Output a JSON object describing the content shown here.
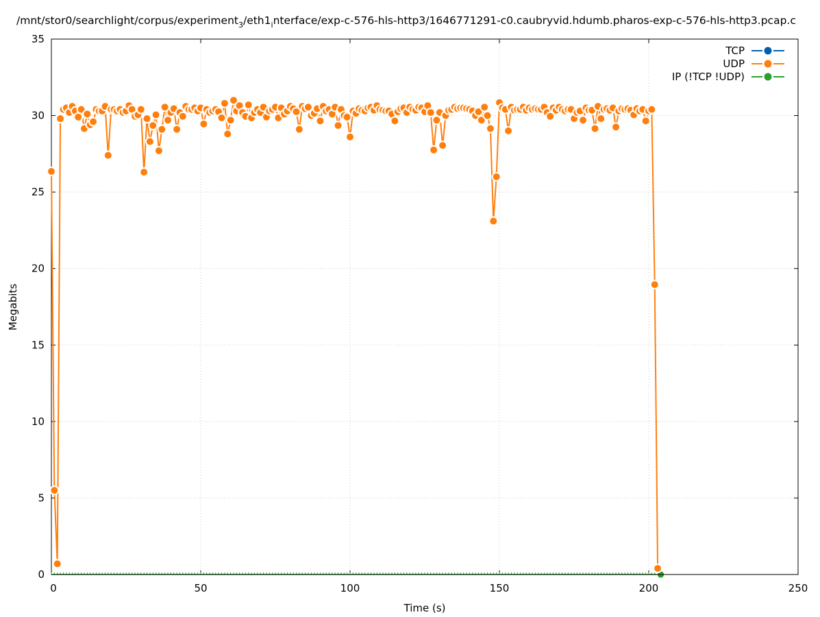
{
  "chart_data": {
    "type": "line",
    "title_parts": [
      {
        "text": "/mnt/stor0/searchlight/corpus/experiment",
        "sub": false
      },
      {
        "text": "3",
        "sub": true
      },
      {
        "text": "/eth1",
        "sub": false
      },
      {
        "text": "i",
        "sub": true
      },
      {
        "text": "nterface/exp-c-576-hls-http3/1646771291-c0.caubryvid.hdumb.pharos-exp-c-576-hls-http3.pcap.c",
        "sub": false
      }
    ],
    "xlabel": "Time (s)",
    "ylabel": "Megabits",
    "xlim": [
      0,
      250
    ],
    "ylim": [
      0,
      35
    ],
    "xticks": [
      "0",
      "50",
      "100",
      "150",
      "200",
      "250"
    ],
    "yticks": [
      "0",
      "5",
      "10",
      "15",
      "20",
      "25",
      "30",
      "35"
    ],
    "grid": true,
    "legend_position": "top-right",
    "series": [
      {
        "name": "TCP",
        "color": "#0060ad",
        "x_start": 0,
        "values": []
      },
      {
        "name": "UDP",
        "color": "#ff7f0e",
        "x_start": 0,
        "values": [
          26.35,
          5.5,
          0.7,
          29.8,
          30.4,
          30.5,
          30.2,
          30.6,
          30.3,
          29.9,
          30.4,
          29.15,
          30.1,
          29.4,
          29.6,
          30.4,
          30.3,
          30.3,
          30.6,
          27.4,
          30.4,
          30.4,
          30.3,
          30.4,
          30.2,
          30.3,
          30.65,
          30.4,
          29.95,
          30.05,
          30.4,
          26.3,
          29.8,
          28.3,
          29.35,
          30.05,
          27.7,
          29.1,
          30.55,
          29.7,
          30.2,
          30.45,
          29.1,
          30.2,
          29.95,
          30.6,
          30.4,
          30.4,
          30.5,
          30.3,
          30.5,
          29.45,
          30.4,
          30.2,
          30.3,
          30.4,
          30.25,
          29.85,
          30.8,
          28.8,
          29.7,
          31.0,
          30.3,
          30.65,
          30.2,
          29.95,
          30.7,
          29.85,
          30.2,
          30.4,
          30.2,
          30.55,
          29.9,
          30.3,
          30.4,
          30.55,
          29.85,
          30.5,
          30.1,
          30.3,
          30.6,
          30.45,
          30.25,
          29.1,
          30.6,
          30.45,
          30.55,
          30.0,
          30.15,
          30.45,
          29.65,
          30.6,
          30.3,
          30.4,
          30.1,
          30.55,
          29.35,
          30.4,
          30.0,
          29.9,
          28.6,
          30.3,
          30.15,
          30.45,
          30.35,
          30.3,
          30.5,
          30.55,
          30.35,
          30.65,
          30.4,
          30.35,
          30.3,
          30.3,
          30.1,
          29.65,
          30.25,
          30.45,
          30.5,
          30.2,
          30.55,
          30.4,
          30.35,
          30.55,
          30.5,
          30.25,
          30.65,
          30.2,
          27.75,
          29.7,
          30.2,
          28.05,
          30.0,
          30.35,
          30.4,
          30.55,
          30.45,
          30.5,
          30.5,
          30.45,
          30.4,
          30.3,
          30.0,
          30.25,
          29.7,
          30.55,
          30.0,
          29.15,
          23.1,
          26.0,
          30.85,
          30.5,
          30.4,
          29.0,
          30.55,
          30.35,
          30.4,
          30.4,
          30.55,
          30.35,
          30.5,
          30.4,
          30.45,
          30.4,
          30.4,
          30.55,
          30.2,
          29.95,
          30.5,
          30.35,
          30.55,
          30.4,
          30.3,
          30.4,
          30.4,
          29.8,
          30.2,
          30.3,
          29.7,
          30.5,
          30.35,
          30.35,
          29.15,
          30.6,
          29.8,
          30.4,
          30.45,
          30.35,
          30.5,
          29.25,
          30.3,
          30.45,
          30.4,
          30.45,
          30.35,
          30.05,
          30.45,
          30.3,
          30.4,
          29.65,
          30.3,
          30.4,
          18.95,
          0.4
        ]
      },
      {
        "name": "IP (!TCP  !UDP)",
        "color": "#2ca02c",
        "x_start": 0,
        "values": [
          0,
          0,
          0,
          0,
          0,
          0,
          0,
          0,
          0,
          0,
          0,
          0,
          0,
          0,
          0,
          0,
          0,
          0,
          0,
          0,
          0,
          0,
          0,
          0,
          0,
          0,
          0,
          0,
          0,
          0,
          0,
          0,
          0,
          0,
          0,
          0,
          0,
          0,
          0,
          0,
          0,
          0,
          0,
          0,
          0,
          0,
          0,
          0,
          0,
          0,
          0,
          0,
          0,
          0,
          0,
          0,
          0,
          0,
          0,
          0,
          0,
          0,
          0,
          0,
          0,
          0,
          0,
          0,
          0,
          0,
          0,
          0,
          0,
          0,
          0,
          0,
          0,
          0,
          0,
          0,
          0,
          0,
          0,
          0,
          0,
          0,
          0,
          0,
          0,
          0,
          0,
          0,
          0,
          0,
          0,
          0,
          0,
          0,
          0,
          0,
          0,
          0,
          0,
          0,
          0,
          0,
          0,
          0,
          0,
          0,
          0,
          0,
          0,
          0,
          0,
          0,
          0,
          0,
          0,
          0,
          0,
          0,
          0,
          0,
          0,
          0,
          0,
          0,
          0,
          0,
          0,
          0,
          0,
          0,
          0,
          0,
          0,
          0,
          0,
          0,
          0,
          0,
          0,
          0,
          0,
          0,
          0,
          0,
          0,
          0,
          0,
          0,
          0,
          0,
          0,
          0,
          0,
          0,
          0,
          0,
          0,
          0,
          0,
          0,
          0,
          0,
          0,
          0,
          0,
          0,
          0,
          0,
          0,
          0,
          0,
          0,
          0,
          0,
          0,
          0,
          0,
          0,
          0,
          0,
          0,
          0,
          0,
          0,
          0,
          0,
          0,
          0,
          0,
          0,
          0,
          0,
          0,
          0,
          0,
          0,
          0,
          0,
          0,
          0,
          0
        ]
      }
    ]
  }
}
